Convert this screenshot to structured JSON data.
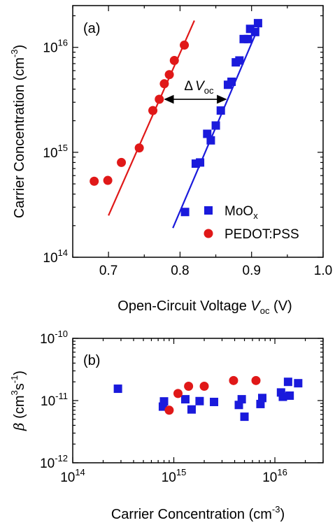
{
  "chart_data": [
    {
      "panel": "(a)",
      "type": "scatter",
      "xlabel": "Open-Circuit Voltage",
      "xlabel_var": "V",
      "xlabel_sub": "oc",
      "xlabel_unit": "(V)",
      "ylabel": "Carrier Concentration (cm",
      "ylabel_sup": "-3",
      "ylabel_end": ")",
      "xlim": [
        0.65,
        1.0
      ],
      "ylim": [
        100000000000000.0,
        2.5e+16
      ],
      "yscale": "log",
      "x_ticks": [
        "0.7",
        "0.8",
        "0.9",
        "1.0"
      ],
      "y_ticks": [
        {
          "base": "10",
          "exp": "14"
        },
        {
          "base": "10",
          "exp": "15"
        },
        {
          "base": "10",
          "exp": "16"
        }
      ],
      "legend": {
        "position": "bottom-right",
        "entries": [
          {
            "label": "MoO",
            "sub": "x",
            "color": "#1a1adc",
            "marker": "square"
          },
          {
            "label": "PEDOT:PSS",
            "sub": "",
            "color": "#e01818",
            "marker": "circle"
          }
        ]
      },
      "annotation": {
        "text": "ΔV",
        "sub": "oc",
        "from_x": 0.778,
        "to_x": 0.865,
        "y": 3200000000000000.0
      },
      "series": [
        {
          "name": "MoOx",
          "color": "#1a1adc",
          "marker": "square",
          "x": [
            0.807,
            0.822,
            0.828,
            0.838,
            0.843,
            0.85,
            0.857,
            0.867,
            0.872,
            0.878,
            0.883,
            0.889,
            0.895,
            0.898,
            0.905,
            0.909
          ],
          "y": [
            270000000000000.0,
            780000000000000.0,
            800000000000000.0,
            1500000000000000.0,
            1300000000000000.0,
            1800000000000000.0,
            2500000000000000.0,
            4400000000000000.0,
            4700000000000000.0,
            7200000000000000.0,
            7500000000000000.0,
            1.2e+16,
            1.2e+16,
            1.5e+16,
            1.4e+16,
            1.7e+16
          ],
          "fit": {
            "x": [
              0.79,
              0.912
            ],
            "y": [
              190000000000000.0,
              1.7e+16
            ]
          }
        },
        {
          "name": "PEDOT:PSS",
          "color": "#e01818",
          "marker": "circle",
          "x": [
            0.68,
            0.699,
            0.718,
            0.743,
            0.762,
            0.771,
            0.778,
            0.785,
            0.792,
            0.806
          ],
          "y": [
            530000000000000.0,
            540000000000000.0,
            800000000000000.0,
            1100000000000000.0,
            2500000000000000.0,
            3200000000000000.0,
            4500000000000000.0,
            5500000000000000.0,
            7500000000000000.0,
            1.05e+16
          ],
          "fit": {
            "x": [
              0.7,
              0.82
            ],
            "y": [
              250000000000000.0,
              1.8e+16
            ]
          }
        }
      ]
    },
    {
      "panel": "(b)",
      "type": "scatter",
      "xlabel": "Carrier Concentration (cm",
      "xlabel_sup": "-3",
      "xlabel_end": ")",
      "ylabel_var": "β",
      "ylabel": " (cm",
      "ylabel_sup": "3",
      "ylabel_mid": "s",
      "ylabel_sup2": "-1",
      "ylabel_end": ")",
      "xscale": "log",
      "yscale": "log",
      "xlim": [
        100000000000000.0,
        3e+16
      ],
      "ylim": [
        1e-12,
        1e-10
      ],
      "x_ticks": [
        {
          "base": "10",
          "exp": "14"
        },
        {
          "base": "10",
          "exp": "15"
        },
        {
          "base": "10",
          "exp": "16"
        }
      ],
      "y_ticks": [
        {
          "base": "10",
          "exp": "-12"
        },
        {
          "base": "10",
          "exp": "-11"
        },
        {
          "base": "10",
          "exp": "-10"
        }
      ],
      "series": [
        {
          "name": "MoOx",
          "color": "#1a1adc",
          "marker": "square",
          "x": [
            280000000000000.0,
            780000000000000.0,
            800000000000000.0,
            1300000000000000.0,
            1500000000000000.0,
            1800000000000000.0,
            2500000000000000.0,
            4400000000000000.0,
            4700000000000000.0,
            5000000000000000.0,
            7200000000000000.0,
            7500000000000000.0,
            1.15e+16,
            1.2e+16,
            1.35e+16,
            1.4e+16,
            1.7e+16
          ],
          "y": [
            1.55e-11,
            8e-12,
            9.7e-12,
            1.05e-11,
            7.2e-12,
            9.8e-12,
            9.5e-12,
            8.5e-12,
            1.05e-11,
            5.5e-12,
            8.8e-12,
            1.1e-11,
            1.35e-11,
            1.15e-11,
            2e-11,
            1.2e-11,
            1.9e-11
          ]
        },
        {
          "name": "PEDOT:PSS",
          "color": "#e01818",
          "marker": "circle",
          "x": [
            900000000000000.0,
            1100000000000000.0,
            1400000000000000.0,
            2000000000000000.0,
            3900000000000000.0,
            6500000000000000.0
          ],
          "y": [
            7e-12,
            1.3e-11,
            1.7e-11,
            1.7e-11,
            2.1e-11,
            2.1e-11
          ]
        }
      ]
    }
  ]
}
